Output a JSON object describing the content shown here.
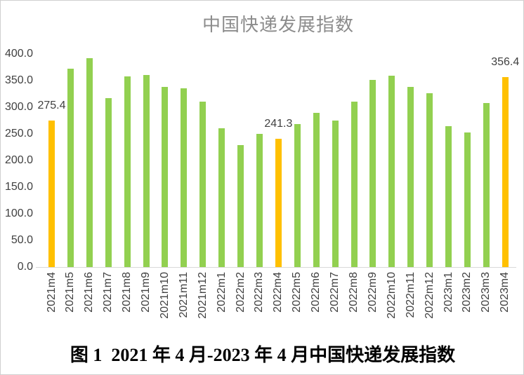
{
  "page": {
    "background": "#ffffff",
    "border_color": "#d0d0d0"
  },
  "chart_data": {
    "type": "bar",
    "title": "中国快递发展指数",
    "categories": [
      "2021m4",
      "2021m5",
      "2021m6",
      "2021m7",
      "2021m8",
      "2021m9",
      "2021m10",
      "2021m11",
      "2021m12",
      "2022m1",
      "2022m2",
      "2022m3",
      "2022m4",
      "2022m5",
      "2022m6",
      "2022m7",
      "2022m8",
      "2022m9",
      "2022m10",
      "2022m11",
      "2022m12",
      "2023m1",
      "2023m2",
      "2023m3",
      "2023m4"
    ],
    "values": [
      275.4,
      372,
      392,
      317,
      358,
      360,
      338,
      335,
      311,
      260,
      229,
      250,
      241.3,
      268,
      289,
      275,
      310,
      352,
      359,
      338,
      327,
      264,
      253,
      308,
      356.4
    ],
    "highlight_indices": [
      0,
      12,
      24
    ],
    "data_labels": [
      {
        "index": 0,
        "text": "275.4"
      },
      {
        "index": 12,
        "text": "241.3"
      },
      {
        "index": 24,
        "text": "356.4"
      }
    ],
    "ylim": [
      0,
      400
    ],
    "yticks": [
      "400.0",
      "350.0",
      "300.0",
      "250.0",
      "200.0",
      "150.0",
      "100.0",
      "50.0",
      "0.0"
    ],
    "ytick_values": [
      400,
      350,
      300,
      250,
      200,
      150,
      100,
      50,
      0
    ],
    "grid": false,
    "legend": "none",
    "xlabel": "",
    "ylabel": ""
  },
  "colors": {
    "bar_green": "#92D050",
    "bar_orange": "#FFC000",
    "title_text": "#8C8C8C",
    "axis_text": "#404040",
    "axis_line": "#D9D9D9"
  },
  "caption": "图 1  2021 年 4 月-2023 年 4 月中国快递发展指数"
}
